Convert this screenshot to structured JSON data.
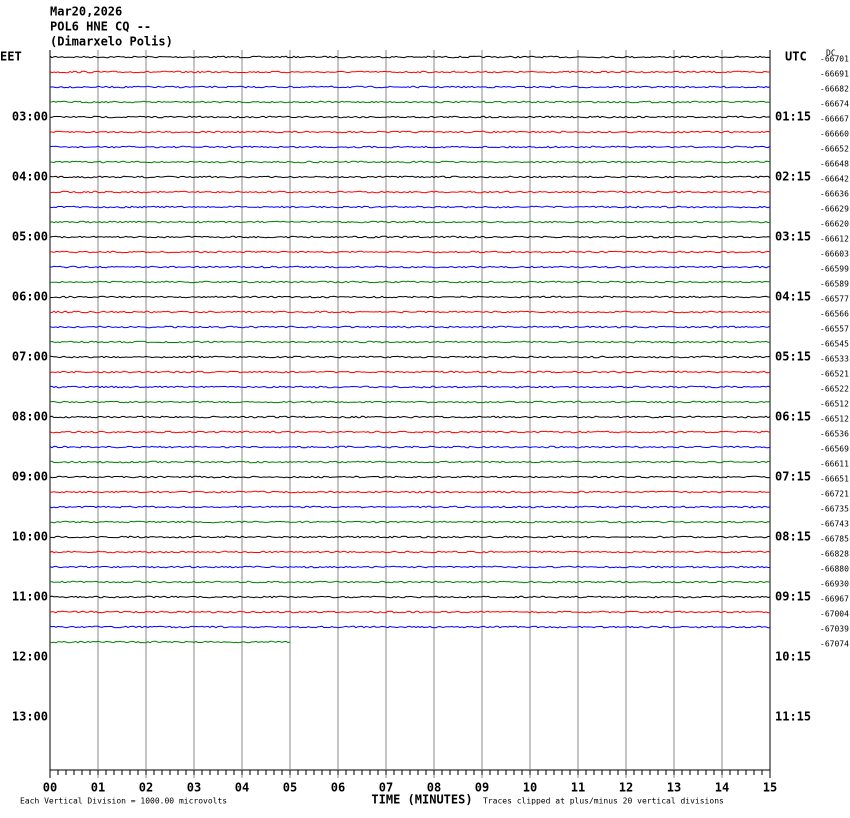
{
  "chart_data": {
    "type": "helicorder",
    "title": "Mar20,2026",
    "subtitle": "POL6 HNE CQ --",
    "station": "(Dimarxelo Polis)",
    "left_zone": "EET",
    "right_zone": "UTC",
    "dc_label": "DC",
    "xlabel": "TIME (MINUTES)",
    "scale_note": "Each Vertical Division = 1000.00 microvolts",
    "clip_note": "Traces clipped at plus/minus 20 vertical divisions",
    "xlim": [
      0,
      15
    ],
    "xticks": [
      {
        "value": 0,
        "label": "00"
      },
      {
        "value": 1,
        "label": "01"
      },
      {
        "value": 2,
        "label": "02"
      },
      {
        "value": 3,
        "label": "03"
      },
      {
        "value": 4,
        "label": "04"
      },
      {
        "value": 5,
        "label": "05"
      },
      {
        "value": 6,
        "label": "06"
      },
      {
        "value": 7,
        "label": "07"
      },
      {
        "value": 8,
        "label": "08"
      },
      {
        "value": 9,
        "label": "09"
      },
      {
        "value": 10,
        "label": "10"
      },
      {
        "value": 11,
        "label": "11"
      },
      {
        "value": 12,
        "label": "12"
      },
      {
        "value": 13,
        "label": "13"
      },
      {
        "value": 14,
        "label": "14"
      },
      {
        "value": 15,
        "label": "15"
      }
    ],
    "left_hours": [
      "03:00",
      "04:00",
      "05:00",
      "06:00",
      "07:00",
      "08:00",
      "09:00",
      "10:00",
      "11:00",
      "12:00",
      "13:00"
    ],
    "right_hours": [
      "01:15",
      "02:15",
      "03:15",
      "04:15",
      "05:15",
      "06:15",
      "07:15",
      "08:15",
      "09:15",
      "10:15",
      "11:15"
    ],
    "trace_colors": [
      "#000000",
      "#ff0000",
      "#0000ff",
      "#008000"
    ],
    "trace_offsets": [
      -66701,
      -66691,
      -66682,
      -66674,
      -66667,
      -66660,
      -66652,
      -66648,
      -66642,
      -66636,
      -66629,
      -66620,
      -66612,
      -66603,
      -66599,
      -66589,
      -66577,
      -66566,
      -66557,
      -66545,
      -66533,
      -66521,
      -66522,
      -66512,
      -66512,
      -66536,
      -66569,
      -66611,
      -66651,
      -66721,
      -66735,
      -66743,
      -66785,
      -66828,
      -66880,
      -66930,
      -66967,
      -67004,
      -67039,
      -67074
    ]
  }
}
